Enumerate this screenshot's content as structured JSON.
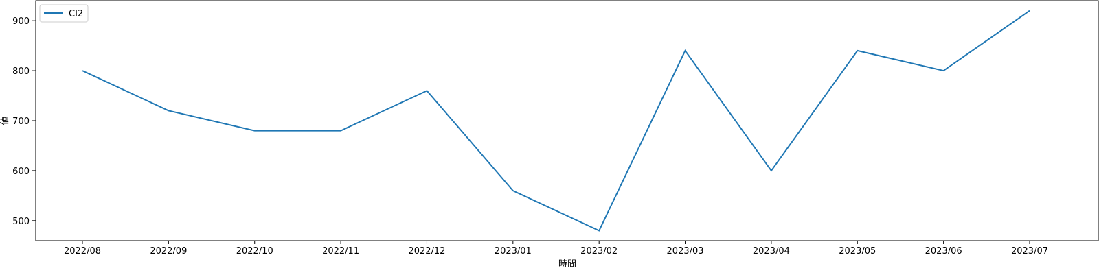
{
  "chart_data": {
    "type": "line",
    "title": "",
    "xlabel": "時間",
    "ylabel": "値",
    "categories": [
      "2022/08",
      "2022/09",
      "2022/10",
      "2022/11",
      "2022/12",
      "2023/01",
      "2023/02",
      "2023/03",
      "2023/04",
      "2023/05",
      "2023/06",
      "2023/07"
    ],
    "series": [
      {
        "name": "CI2",
        "color": "#1f77b4",
        "values": [
          800,
          720,
          680,
          680,
          760,
          560,
          480,
          840,
          600,
          840,
          800,
          920
        ]
      }
    ],
    "y_ticks": [
      500,
      600,
      700,
      800,
      900
    ],
    "ylim": [
      460,
      940
    ],
    "grid": false,
    "legend_position": "top-left"
  }
}
